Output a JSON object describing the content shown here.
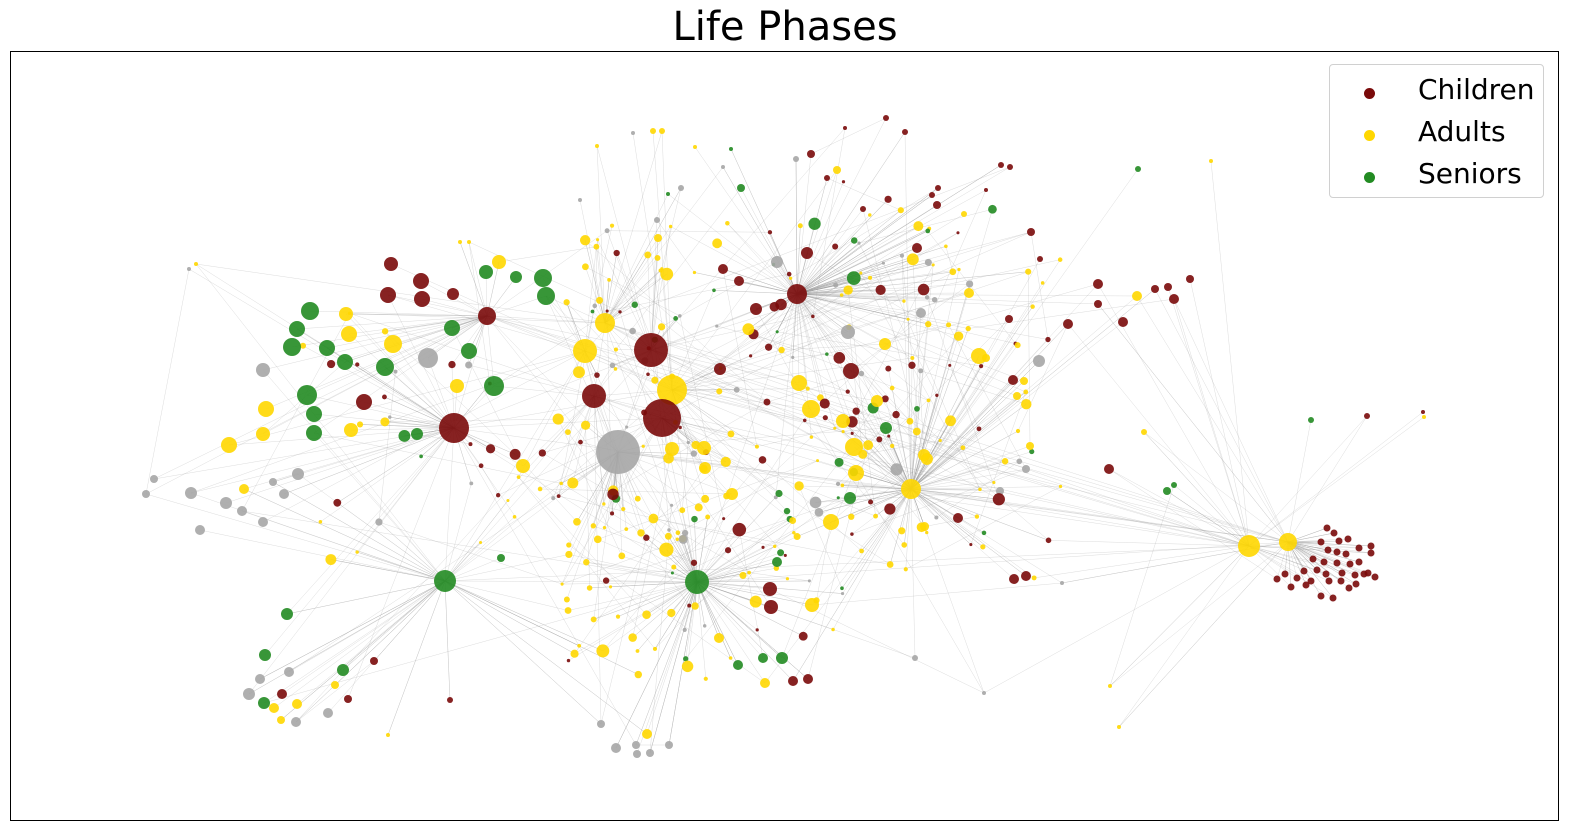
{
  "title": "Life Phases",
  "legend": [
    {
      "label": "Children",
      "color": "#7a0a0a"
    },
    {
      "label": "Adults",
      "color": "#ffd700"
    },
    {
      "label": "Seniors",
      "color": "#228b22"
    }
  ],
  "colors": {
    "children": "#7a0a0a",
    "adults": "#ffd700",
    "seniors": "#228b22",
    "unknown": "#a6a6a6",
    "edge": "#9a9a9a"
  }
}
